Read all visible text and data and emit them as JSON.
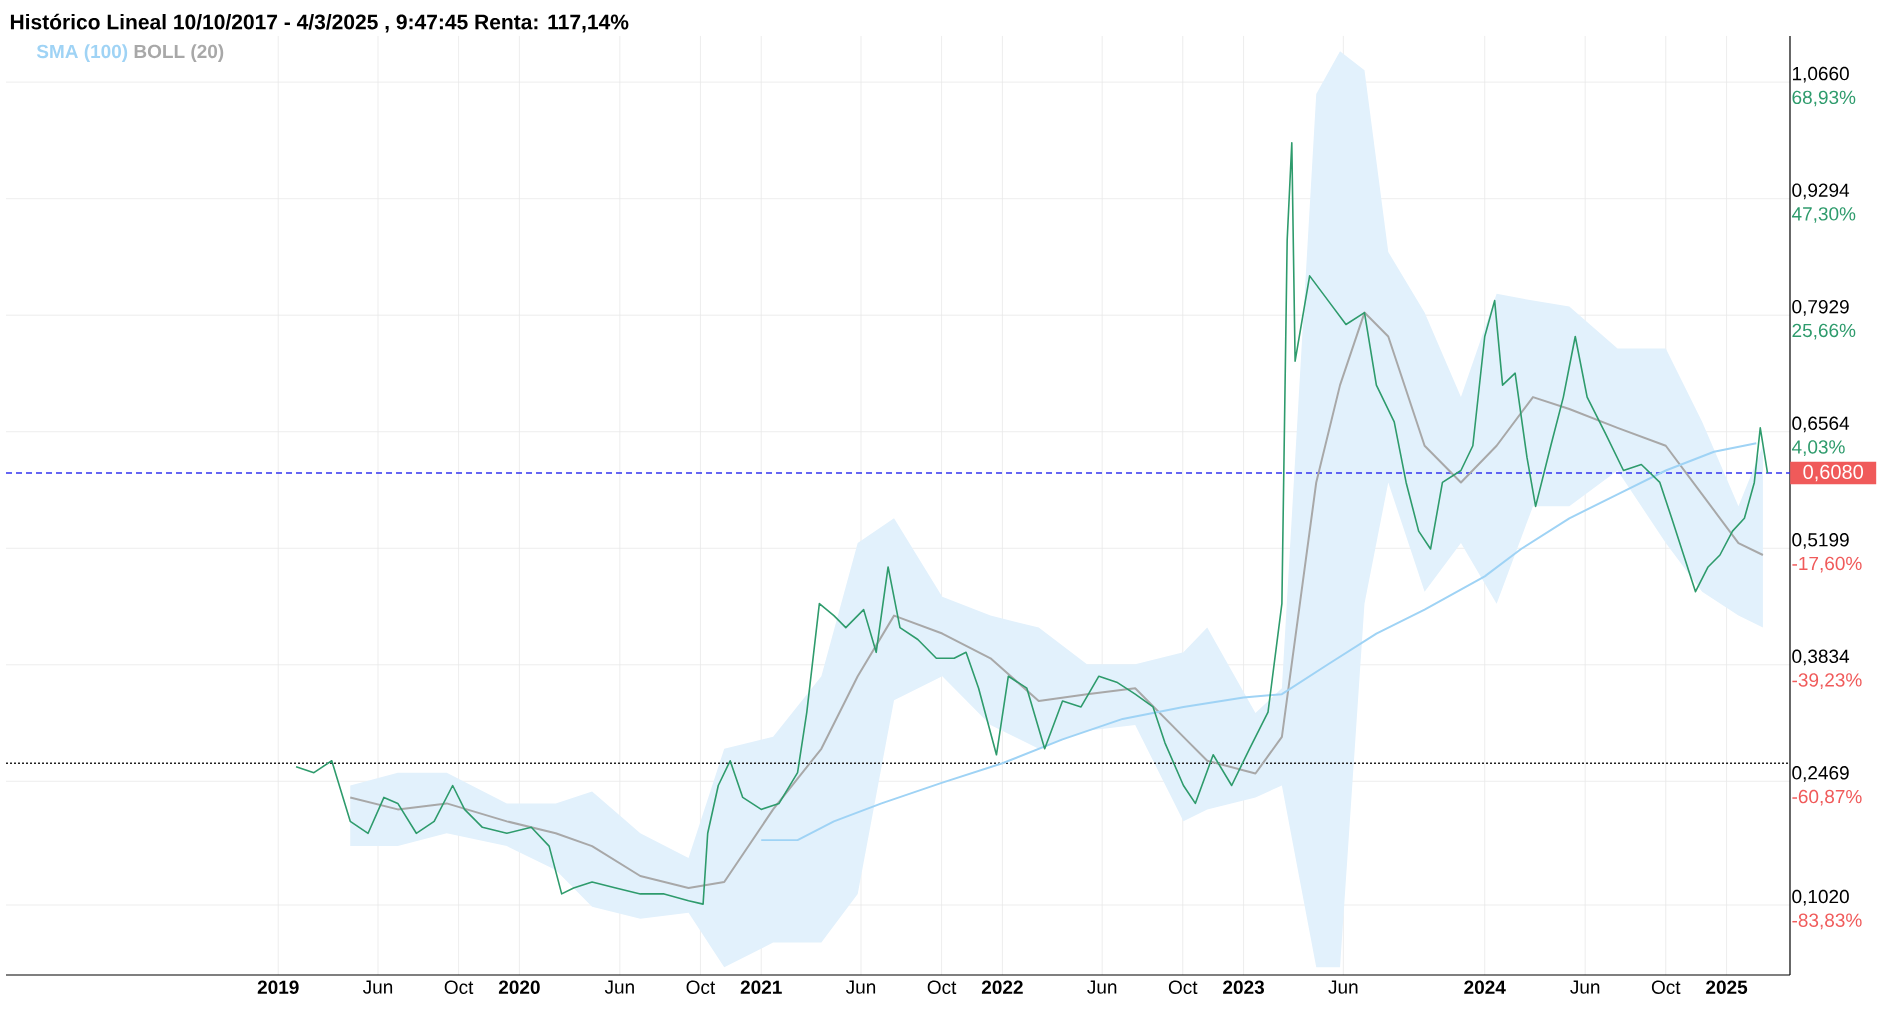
{
  "chart_data": {
    "type": "line",
    "title": "Histórico Lineal 10/10/2017 - 4/3/2025 , 9:47:45 Renta: 117,14%",
    "xlim": [
      "2017-11-15",
      "2025-04-07"
    ],
    "ylim": [
      0.02,
      1.12
    ],
    "y2lim": [
      -96.83,
      77.49
    ],
    "xticks": [
      {
        "value": "2019-01-01",
        "label": "2019"
      },
      {
        "value": "2019-06-01",
        "label": "Jun"
      },
      {
        "value": "2019-10-01",
        "label": "Oct"
      },
      {
        "value": "2020-01-01",
        "label": "2020"
      },
      {
        "value": "2020-06-01",
        "label": "Jun"
      },
      {
        "value": "2020-10-01",
        "label": "Oct"
      },
      {
        "value": "2021-01-01",
        "label": "2021"
      },
      {
        "value": "2021-06-01",
        "label": "Jun"
      },
      {
        "value": "2021-10-01",
        "label": "Oct"
      },
      {
        "value": "2022-01-01",
        "label": "2022"
      },
      {
        "value": "2022-06-01",
        "label": "Jun"
      },
      {
        "value": "2022-10-01",
        "label": "Oct"
      },
      {
        "value": "2023-01-01",
        "label": "2023"
      },
      {
        "value": "2023-06-01",
        "label": "Jun"
      },
      {
        "value": "2024-01-01",
        "label": "2024"
      },
      {
        "value": "2024-06-01",
        "label": "Jun"
      },
      {
        "value": "2024-10-01",
        "label": "Oct"
      },
      {
        "value": "2025-01-01",
        "label": "2025"
      }
    ],
    "yticks": [
      {
        "value": 0.102,
        "label": "0,1020"
      },
      {
        "value": 0.2469,
        "label": "0,2469"
      },
      {
        "value": 0.3834,
        "label": "0,3834"
      },
      {
        "value": 0.5199,
        "label": "0,5199"
      },
      {
        "value": 0.6564,
        "label": "0,6564"
      },
      {
        "value": 0.7929,
        "label": "0,7929"
      },
      {
        "value": 0.9294,
        "label": "0,9294"
      },
      {
        "value": 1.066,
        "label": "1,0660"
      }
    ],
    "y2ticks": [
      {
        "value": -83.83,
        "label": "-83,83%"
      },
      {
        "value": -60.87,
        "label": "-60,87%"
      },
      {
        "value": -39.23,
        "label": "-39,23%"
      },
      {
        "value": -17.6,
        "label": "-17,60%"
      },
      {
        "value": 4.03,
        "label": "4,03%"
      },
      {
        "value": 25.66,
        "label": "25,66%"
      },
      {
        "value": 47.3,
        "label": "47,30%"
      },
      {
        "value": 68.93,
        "label": "68,93%"
      }
    ],
    "grid": true,
    "legend": "top left",
    "ref_lines": [
      {
        "axis": "y",
        "value": 0.608,
        "label": "0,6080",
        "color": "#3333ee",
        "line_style": "dashed"
      },
      {
        "axis": "y",
        "value": 0.268,
        "color": "#222222",
        "line_style": "dotted"
      }
    ],
    "series": [
      {
        "color": "#2e9b6c",
        "x": [
          "2019-01-28",
          "2019-02-24",
          "2019-03-23",
          "2019-04-20",
          "2019-05-17",
          "2019-06-10",
          "2019-07-01",
          "2019-07-29",
          "2019-08-25",
          "2019-09-22",
          "2019-10-10",
          "2019-11-06",
          "2019-12-13",
          "2020-01-19",
          "2020-02-15",
          "2020-03-05",
          "2020-03-23",
          "2020-04-20",
          "2020-05-26",
          "2020-07-02",
          "2020-08-07",
          "2020-09-13",
          "2020-10-05",
          "2020-10-12",
          "2020-10-28",
          "2020-11-15",
          "2020-12-04",
          "2021-01-01",
          "2021-01-28",
          "2021-02-25",
          "2021-03-11",
          "2021-03-30",
          "2021-04-21",
          "2021-05-09",
          "2021-06-05",
          "2021-06-24",
          "2021-07-12",
          "2021-07-30",
          "2021-08-26",
          "2021-09-23",
          "2021-10-20",
          "2021-11-07",
          "2021-11-26",
          "2021-12-23",
          "2022-01-10",
          "2022-02-07",
          "2022-03-06",
          "2022-04-02",
          "2022-04-30",
          "2022-05-27",
          "2022-06-23",
          "2022-07-21",
          "2022-08-17",
          "2022-09-04",
          "2022-10-02",
          "2022-10-20",
          "2022-11-16",
          "2022-12-14",
          "2023-01-10",
          "2023-02-07",
          "2023-02-28",
          "2023-03-08",
          "2023-03-15",
          "2023-03-20",
          "2023-04-11",
          "2023-05-09",
          "2023-06-05",
          "2023-07-03",
          "2023-07-21",
          "2023-08-17",
          "2023-09-04",
          "2023-09-23",
          "2023-10-11",
          "2023-10-29",
          "2023-11-26",
          "2023-12-14",
          "2024-01-01",
          "2024-01-16",
          "2024-01-28",
          "2024-02-16",
          "2024-03-05",
          "2024-03-18",
          "2024-04-10",
          "2024-04-29",
          "2024-05-17",
          "2024-06-04",
          "2024-07-02",
          "2024-07-29",
          "2024-08-25",
          "2024-09-22",
          "2024-10-10",
          "2024-10-28",
          "2024-11-15",
          "2024-12-04",
          "2024-12-22",
          "2025-01-10",
          "2025-01-28",
          "2025-02-12",
          "2025-02-21",
          "2025-03-04"
        ],
        "values": [
          0.264,
          0.257,
          0.271,
          0.2,
          0.186,
          0.228,
          0.221,
          0.186,
          0.2,
          0.242,
          0.214,
          0.193,
          0.186,
          0.193,
          0.171,
          0.115,
          0.122,
          0.129,
          0.122,
          0.115,
          0.115,
          0.107,
          0.103,
          0.186,
          0.242,
          0.271,
          0.228,
          0.214,
          0.221,
          0.257,
          0.328,
          0.455,
          0.441,
          0.427,
          0.448,
          0.398,
          0.498,
          0.427,
          0.413,
          0.391,
          0.391,
          0.398,
          0.356,
          0.278,
          0.37,
          0.356,
          0.285,
          0.341,
          0.334,
          0.37,
          0.363,
          0.349,
          0.334,
          0.292,
          0.242,
          0.221,
          0.278,
          0.242,
          0.285,
          0.328,
          0.455,
          0.881,
          0.995,
          0.739,
          0.839,
          0.81,
          0.782,
          0.796,
          0.711,
          0.668,
          0.597,
          0.54,
          0.519,
          0.597,
          0.611,
          0.64,
          0.768,
          0.81,
          0.711,
          0.725,
          0.626,
          0.569,
          0.64,
          0.697,
          0.768,
          0.697,
          0.654,
          0.611,
          0.618,
          0.597,
          0.555,
          0.512,
          0.469,
          0.498,
          0.512,
          0.54,
          0.555,
          0.597,
          0.661,
          0.608
        ]
      },
      {
        "name": "SMA (100)",
        "color": "#9fd3f5",
        "x": [
          "2021-01-01",
          "2021-02-25",
          "2021-04-21",
          "2021-07-02",
          "2021-10-01",
          "2022-01-01",
          "2022-04-02",
          "2022-07-02",
          "2022-10-02",
          "2023-01-01",
          "2023-02-28",
          "2023-05-09",
          "2023-07-21",
          "2023-10-02",
          "2024-01-01",
          "2024-02-25",
          "2024-05-08",
          "2024-07-20",
          "2024-10-01",
          "2024-12-13",
          "2025-02-15"
        ],
        "values": [
          0.178,
          0.178,
          0.2,
          0.221,
          0.245,
          0.268,
          0.296,
          0.32,
          0.334,
          0.345,
          0.349,
          0.384,
          0.42,
          0.448,
          0.487,
          0.519,
          0.555,
          0.583,
          0.611,
          0.633,
          0.643
        ]
      },
      {
        "name": "BOLL (20)",
        "color": "#a8a8a8",
        "x": [
          "2019-04-20",
          "2019-07-01",
          "2019-09-13",
          "2019-12-13",
          "2020-02-25",
          "2020-04-20",
          "2020-07-02",
          "2020-09-13",
          "2020-11-06",
          "2021-01-19",
          "2021-04-02",
          "2021-05-27",
          "2021-07-21",
          "2021-10-02",
          "2021-12-14",
          "2022-02-25",
          "2022-05-09",
          "2022-07-21",
          "2022-10-02",
          "2022-11-07",
          "2023-01-19",
          "2023-02-28",
          "2023-04-21",
          "2023-05-27",
          "2023-07-03",
          "2023-08-08",
          "2023-10-02",
          "2023-11-26",
          "2024-01-19",
          "2024-03-14",
          "2024-05-08",
          "2024-07-20",
          "2024-10-01",
          "2024-11-25",
          "2025-01-19",
          "2025-02-25"
        ],
        "values": [
          0.228,
          0.214,
          0.221,
          0.2,
          0.186,
          0.171,
          0.136,
          0.122,
          0.129,
          0.214,
          0.285,
          0.37,
          0.441,
          0.42,
          0.391,
          0.341,
          0.349,
          0.356,
          0.299,
          0.271,
          0.256,
          0.299,
          0.597,
          0.711,
          0.796,
          0.768,
          0.64,
          0.597,
          0.64,
          0.697,
          0.683,
          0.661,
          0.64,
          0.583,
          0.526,
          0.512
        ],
        "upper": [
          0.242,
          0.257,
          0.257,
          0.221,
          0.221,
          0.235,
          0.186,
          0.157,
          0.285,
          0.299,
          0.37,
          0.526,
          0.555,
          0.463,
          0.441,
          0.427,
          0.384,
          0.384,
          0.398,
          0.427,
          0.327,
          0.356,
          1.052,
          1.102,
          1.08,
          0.867,
          0.796,
          0.697,
          0.818,
          0.81,
          0.803,
          0.754,
          0.754,
          0.668,
          0.569,
          0.64
        ],
        "lower": [
          0.171,
          0.171,
          0.186,
          0.171,
          0.143,
          0.1,
          0.086,
          0.093,
          0.029,
          0.058,
          0.058,
          0.115,
          0.342,
          0.37,
          0.313,
          0.285,
          0.306,
          0.313,
          0.2,
          0.214,
          0.228,
          0.242,
          0.029,
          0.029,
          0.455,
          0.597,
          0.469,
          0.526,
          0.455,
          0.569,
          0.569,
          0.611,
          0.526,
          0.469,
          0.441,
          0.427
        ]
      }
    ]
  }
}
